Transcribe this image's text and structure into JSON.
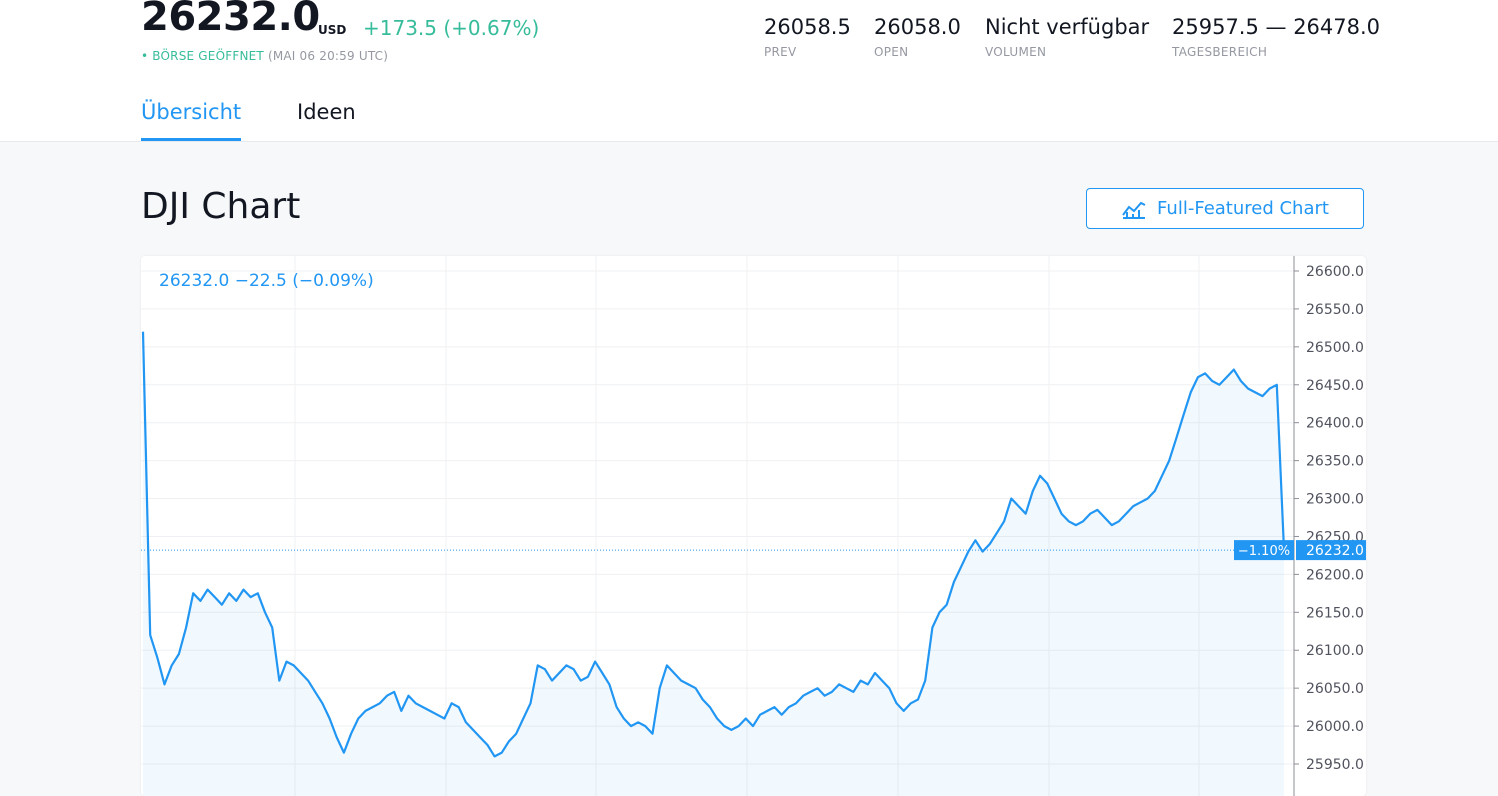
{
  "quote": {
    "price": "26232.0",
    "currency": "USD",
    "change": "+173.5 (+0.67%)",
    "status_label": "• BÖRSE GEÖFFNET",
    "status_time": "(MAI 06 20:59 UTC)"
  },
  "stats": [
    {
      "value": "26058.5",
      "label": "PREV"
    },
    {
      "value": "26058.0",
      "label": "OPEN"
    },
    {
      "value": "Nicht verfügbar",
      "label": "VOLUMEN"
    },
    {
      "value": "25957.5 — 26478.0",
      "label": "TAGESBEREICH"
    }
  ],
  "tabs": [
    {
      "label": "Übersicht",
      "active": true
    },
    {
      "label": "Ideen",
      "active": false
    }
  ],
  "section_title": "DJI Chart",
  "full_chart_button": "Full-Featured Chart",
  "colors": {
    "accent": "#2196f3",
    "positive": "#37bc9b",
    "text": "#131722",
    "muted": "#9598a1"
  },
  "chart_data": {
    "type": "area",
    "legend_value": "26232.0  −22.5 (−0.09%)",
    "last_price": "26232.0",
    "last_price_pct": "−1.10%",
    "y_ticks": [
      "26600.0",
      "26550.0",
      "26500.0",
      "26450.0",
      "26400.0",
      "26350.0",
      "26300.0",
      "26250.0",
      "26200.0",
      "26150.0",
      "26100.0",
      "26050.0",
      "26000.0",
      "25950.0"
    ],
    "ylim": [
      25930,
      26620
    ],
    "grid": true,
    "series": [
      {
        "values": [
          26520,
          26120,
          26090,
          26055,
          26080,
          26095,
          26130,
          26175,
          26165,
          26180,
          26170,
          26160,
          26175,
          26165,
          26180,
          26170,
          26175,
          26150,
          26130,
          26060,
          26085,
          26080,
          26070,
          26060,
          26045,
          26030,
          26010,
          25985,
          25965,
          25990,
          26010,
          26020,
          26025,
          26030,
          26040,
          26045,
          26020,
          26040,
          26030,
          26025,
          26020,
          26015,
          26010,
          26030,
          26025,
          26005,
          25995,
          25985,
          25975,
          25960,
          25965,
          25980,
          25990,
          26010,
          26030,
          26080,
          26075,
          26060,
          26070,
          26080,
          26075,
          26060,
          26065,
          26085,
          26070,
          26055,
          26025,
          26010,
          26000,
          26005,
          26000,
          25990,
          26050,
          26080,
          26070,
          26060,
          26055,
          26050,
          26035,
          26025,
          26010,
          26000,
          25995,
          26000,
          26010,
          26000,
          26015,
          26020,
          26025,
          26015,
          26025,
          26030,
          26040,
          26045,
          26050,
          26040,
          26045,
          26055,
          26050,
          26045,
          26060,
          26055,
          26070,
          26060,
          26050,
          26030,
          26020,
          26030,
          26035,
          26060,
          26130,
          26150,
          26160,
          26190,
          26210,
          26230,
          26245,
          26230,
          26240,
          26255,
          26270,
          26300,
          26290,
          26280,
          26310,
          26330,
          26320,
          26300,
          26280,
          26270,
          26265,
          26270,
          26280,
          26285,
          26275,
          26265,
          26270,
          26280,
          26290,
          26295,
          26300,
          26310,
          26330,
          26350,
          26380,
          26410,
          26440,
          26460,
          26465,
          26455,
          26450,
          26460,
          26470,
          26455,
          26445,
          26440,
          26435,
          26445,
          26450,
          26232
        ]
      }
    ]
  }
}
